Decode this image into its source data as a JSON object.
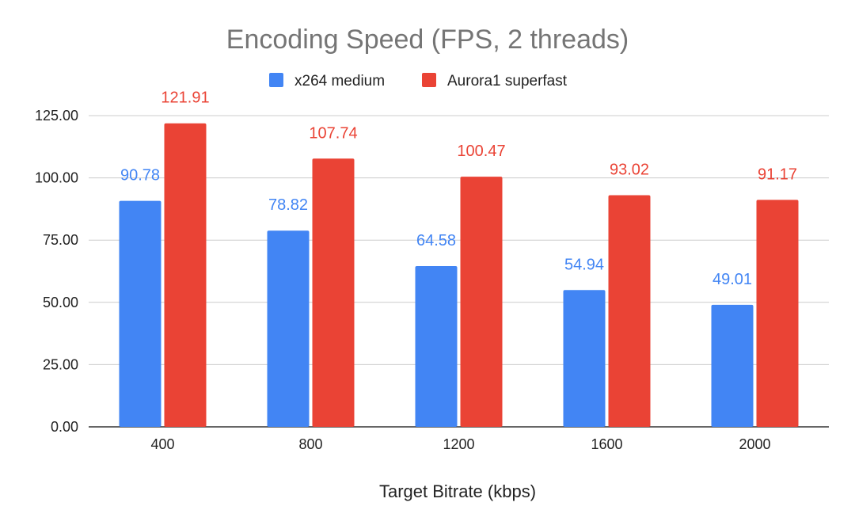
{
  "chart_data": {
    "type": "bar",
    "title": "Encoding Speed (FPS, 2 threads)",
    "xlabel": "Target Bitrate (kbps)",
    "ylabel": "",
    "categories": [
      "400",
      "800",
      "1200",
      "1600",
      "2000"
    ],
    "series": [
      {
        "name": "x264 medium",
        "color": "#4285f4",
        "values": [
          90.78,
          78.82,
          64.58,
          54.94,
          49.01
        ],
        "labels": [
          "90.78",
          "78.82",
          "64.58",
          "54.94",
          "49.01"
        ]
      },
      {
        "name": "Aurora1 superfast",
        "color": "#ea4335",
        "values": [
          121.91,
          107.74,
          100.47,
          93.02,
          91.17
        ],
        "labels": [
          "121.91",
          "107.74",
          "100.47",
          "93.02",
          "91.17"
        ]
      }
    ],
    "ylim": [
      0,
      125
    ],
    "yticks": [
      0,
      25,
      50,
      75,
      100,
      125
    ],
    "ytick_labels": [
      "0.00",
      "25.00",
      "50.00",
      "75.00",
      "100.00",
      "125.00"
    ],
    "grid": true,
    "legend_position": "top"
  }
}
